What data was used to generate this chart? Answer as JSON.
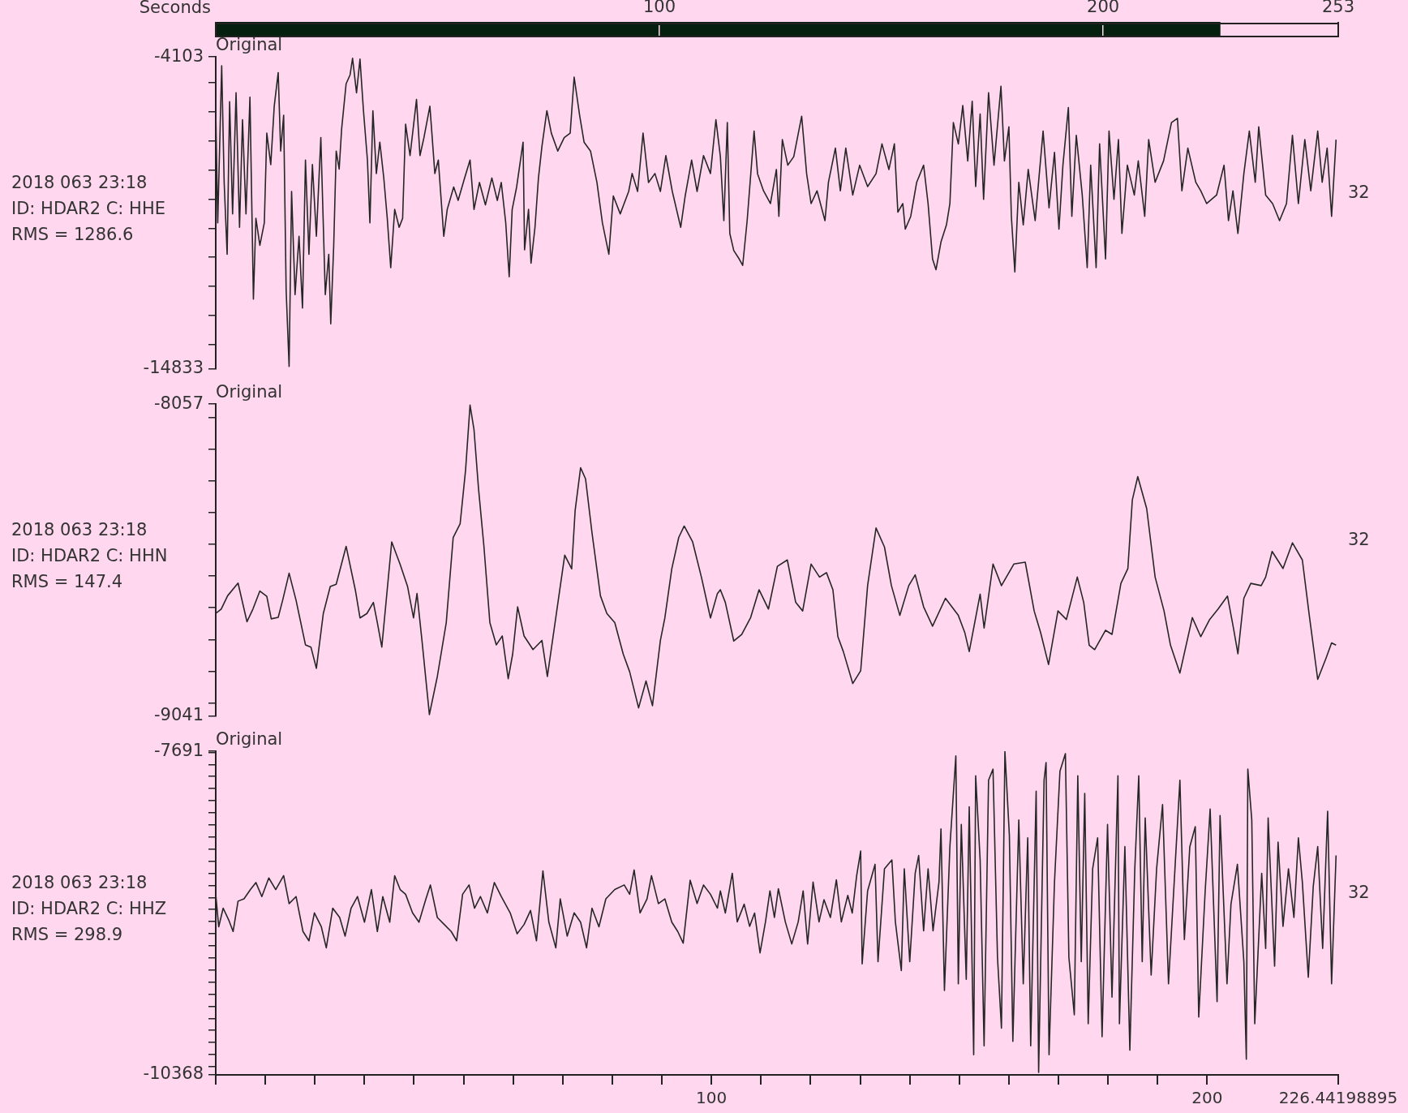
{
  "chart_data": [
    {
      "type": "line",
      "x2label": "Seconds",
      "x2lim": [
        0,
        253
      ],
      "x2ticks": [
        100,
        200,
        253
      ],
      "xlim": [
        0,
        226.44198895
      ],
      "ylim": [
        -14833,
        -4103
      ],
      "yticks": [
        -14833,
        {
          "value": -14000,
          "label": null
        },
        {
          "value": -13000,
          "label": null
        },
        {
          "value": -12000,
          "label": null
        },
        {
          "value": -11000,
          "label": null
        },
        {
          "value": -10000,
          "label": null
        },
        {
          "value": -9000,
          "label": null
        },
        {
          "value": -8000,
          "label": null
        },
        {
          "value": -7000,
          "label": null
        },
        {
          "value": -6000,
          "label": null
        },
        {
          "value": -5000,
          "label": null
        },
        -4103
      ],
      "tick_labels": "y",
      "annotations": [
        "Original",
        "2018 063 23:18",
        "ID: HDAR2 C: HHE",
        "RMS = 1286.6",
        "32"
      ],
      "series": [
        {
          "color": "#262626",
          "x": [
            0.0,
            0.4,
            1.2,
            1.7,
            2.3,
            2.8,
            3.4,
            4.1,
            4.8,
            5.4,
            6.1,
            6.9,
            7.6,
            8.1,
            8.9,
            9.8,
            10.3,
            11.1,
            11.8,
            12.6,
            13.1,
            13.7,
            14.2,
            14.8,
            15.3,
            16.0,
            16.8,
            17.5,
            18.1,
            18.8,
            19.5,
            20.3,
            21.2,
            22.1,
            22.8,
            23.2,
            23.8,
            24.3,
            24.9,
            25.4,
            26.3,
            27.1,
            27.6,
            28.4,
            29.1,
            29.8,
            30.6,
            31.1,
            31.7,
            32.4,
            33.1,
            33.9,
            34.6,
            35.3,
            36.1,
            37.0,
            37.7,
            38.3,
            39.2,
            40.5,
            41.2,
            42.0,
            43.2,
            44.2,
            44.9,
            46.0,
            46.7,
            48.0,
            48.9,
            50.2,
            51.3,
            52.1,
            53.2,
            54.4,
            55.7,
            56.8,
            57.6,
            58.5,
            59.2,
            59.8,
            60.7,
            62.0,
            62.3,
            63.1,
            63.6,
            64.4,
            65.1,
            65.8,
            66.8,
            67.7,
            69.0,
            70.3,
            71.5,
            72.3,
            73.4,
            74.3,
            75.6,
            76.9,
            78.0,
            79.3,
            80.2,
            81.6,
            83.3,
            84.0,
            85.1,
            86.2,
            87.3,
            88.6,
            89.7,
            90.8,
            92.1,
            93.8,
            94.7,
            96.0,
            97.1,
            98.4,
            99.8,
            100.9,
            101.8,
            102.5,
            103.2,
            103.7,
            104.5,
            105.6,
            106.3,
            107.2,
            108.6,
            109.3,
            110.5,
            111.9,
            113.1,
            113.6,
            114.3,
            115.4,
            116.6,
            118.2,
            119.2,
            120.1,
            121.3,
            122.9,
            123.6,
            125.0,
            126.0,
            127.1,
            128.5,
            129.9,
            131.5,
            133.2,
            134.4,
            135.8,
            136.9,
            137.6,
            138.6,
            139.1,
            140.2,
            141.4,
            142.8,
            143.7,
            144.6,
            145.3,
            146.3,
            147.4,
            148.1,
            148.8,
            149.8,
            150.7,
            151.7,
            152.6,
            153.3,
            154.2,
            154.9,
            155.9,
            157.0,
            158.4,
            159.1,
            160.0,
            160.5,
            161.2,
            162.0,
            162.9,
            163.9,
            165.3,
            166.9,
            168.1,
            169.2,
            170.1,
            170.9,
            172.0,
            172.7,
            173.6,
            174.8,
            175.8,
            176.5,
            177.6,
            178.3,
            179.5,
            180.2,
            181.2,
            182.1,
            182.8,
            183.9,
            185.3,
            186.1,
            187.4,
            188.2,
            189.5,
            191.2,
            192.8,
            194.0,
            194.9,
            196.1,
            197.7,
            198.7,
            199.9,
            201.9,
            203.4,
            204.3,
            205.2,
            206.2,
            207.4,
            208.5,
            209.7,
            210.4,
            211.8,
            213.2,
            214.6,
            216.0,
            217.2,
            218.4,
            219.7,
            220.9,
            222.3,
            223.2,
            224.2,
            225.1,
            226.0
          ],
          "values": [
            -5956,
            -9816,
            -4412,
            -8426,
            -10897,
            -5647,
            -9507,
            -5338,
            -9970,
            -6265,
            -9507,
            -5493,
            -12441,
            -9661,
            -10588,
            -9816,
            -6728,
            -7809,
            -5801,
            -4643,
            -7345,
            -6110,
            -12132,
            -14757,
            -8735,
            -12286,
            -10279,
            -12749,
            -7654,
            -10897,
            -7809,
            -10279,
            -6882,
            -12286,
            -10897,
            -13290,
            -10588,
            -7345,
            -7963,
            -6573,
            -5029,
            -4721,
            -4150,
            -5338,
            -4180,
            -5956,
            -7654,
            -9816,
            -5956,
            -8117,
            -7037,
            -8272,
            -9661,
            -11360,
            -9353,
            -9970,
            -9661,
            -6419,
            -7500,
            -5570,
            -7500,
            -6882,
            -5801,
            -8117,
            -7654,
            -10279,
            -9353,
            -8581,
            -9044,
            -8272,
            -7654,
            -9353,
            -8426,
            -9198,
            -8272,
            -9044,
            -8426,
            -9816,
            -11669,
            -9353,
            -8581,
            -7037,
            -10742,
            -9353,
            -11205,
            -9970,
            -8272,
            -7191,
            -5956,
            -6728,
            -7345,
            -6882,
            -6728,
            -4798,
            -6110,
            -7037,
            -7345,
            -8426,
            -9816,
            -10897,
            -8889,
            -9507,
            -8735,
            -8117,
            -8735,
            -6728,
            -8426,
            -8117,
            -8735,
            -7500,
            -8735,
            -9970,
            -8889,
            -7654,
            -8735,
            -7500,
            -8117,
            -6265,
            -7538,
            -9740,
            -6364,
            -10181,
            -10768,
            -11061,
            -11282,
            -9740,
            -6657,
            -8125,
            -8713,
            -9153,
            -7979,
            -9593,
            -6951,
            -7832,
            -7538,
            -6144,
            -8125,
            -9153,
            -8713,
            -9740,
            -8419,
            -7245,
            -8713,
            -7245,
            -8859,
            -7832,
            -8566,
            -8125,
            -7098,
            -7979,
            -7098,
            -9447,
            -9153,
            -10034,
            -9593,
            -8419,
            -7832,
            -9153,
            -11061,
            -11428,
            -10474,
            -9887,
            -9153,
            -6364,
            -7098,
            -5777,
            -7685,
            -5630,
            -8566,
            -6070,
            -9006,
            -5336,
            -7832,
            -5116,
            -7685,
            -6511,
            -9593,
            -11502,
            -8419,
            -9887,
            -7979,
            -9740,
            -6657,
            -9300,
            -7391,
            -10034,
            -7832,
            -5850,
            -9593,
            -6804,
            -8859,
            -11355,
            -7832,
            -11355,
            -7098,
            -11061,
            -6657,
            -9006,
            -6951,
            -10181,
            -7832,
            -8859,
            -7685,
            -9593,
            -6951,
            -8419,
            -7685,
            -6364,
            -6217,
            -8713,
            -7245,
            -8419,
            -8713,
            -9153,
            -8859,
            -7832,
            -9740,
            -8713,
            -10181,
            -8125,
            -6657,
            -8419,
            -6511,
            -8859,
            -9153,
            -9740,
            -9153,
            -6804,
            -9153,
            -6951,
            -8713,
            -6657,
            -8419,
            -7245,
            -9593,
            -6951
          ]
        }
      ]
    },
    {
      "type": "line",
      "xlim": [
        0,
        226.44198895
      ],
      "ylim": [
        -9041,
        -8057
      ],
      "yticks": [
        -9041,
        {
          "value": -9000,
          "label": null
        },
        {
          "value": -8900,
          "label": null
        },
        {
          "value": -8800,
          "label": null
        },
        {
          "value": -8700,
          "label": null
        },
        {
          "value": -8600,
          "label": null
        },
        {
          "value": -8500,
          "label": null
        },
        {
          "value": -8400,
          "label": null
        },
        {
          "value": -8300,
          "label": null
        },
        {
          "value": -8200,
          "label": null
        },
        {
          "value": -8100,
          "label": null
        },
        -8057
      ],
      "tick_labels": "y",
      "annotations": [
        "Original",
        "2018 063 23:18",
        "ID: HDAR2 C: HHN",
        "RMS = 147.4",
        "32"
      ],
      "series": [
        {
          "color": "#262626",
          "x": [
            0.0,
            1.1,
            2.4,
            4.5,
            6.3,
            7.5,
            8.9,
            10.3,
            11.2,
            12.6,
            13.5,
            14.8,
            16.2,
            18.1,
            19.2,
            20.3,
            21.7,
            23.1,
            24.3,
            26.3,
            28.2,
            29.1,
            30.5,
            31.8,
            32.6,
            33.5,
            35.5,
            37.2,
            38.7,
            39.9,
            40.6,
            41.6,
            43.1,
            44.7,
            46.5,
            47.9,
            49.3,
            50.4,
            51.3,
            52.1,
            53.0,
            54.1,
            55.3,
            56.6,
            57.8,
            59.0,
            59.9,
            60.9,
            62.2,
            64.0,
            65.8,
            66.9,
            69.1,
            70.4,
            71.8,
            72.5,
            73.6,
            74.6,
            75.9,
            77.6,
            78.9,
            80.5,
            82.2,
            83.5,
            85.3,
            86.8,
            88.1,
            89.7,
            90.6,
            92.0,
            93.4,
            94.5,
            96.2,
            98.0,
            99.8,
            101.2,
            101.8,
            102.8,
            104.5,
            106.1,
            107.9,
            109.6,
            111.5,
            113.3,
            115.3,
            117.0,
            118.4,
            120.1,
            121.8,
            123.2,
            124.5,
            125.5,
            126.6,
            128.5,
            130.1,
            131.5,
            133.2,
            134.9,
            136.3,
            138.0,
            139.8,
            141.1,
            142.8,
            144.6,
            147.2,
            149.8,
            151.1,
            152.0,
            154.2,
            155.0,
            156.8,
            158.5,
            161.0,
            163.3,
            165.1,
            166.4,
            168.0,
            169.9,
            171.6,
            173.8,
            175.1,
            176.2,
            177.3,
            179.5,
            180.8,
            182.6,
            184.0,
            184.9,
            186.0,
            187.8,
            189.5,
            191.3,
            192.6,
            194.5,
            197.0,
            198.7,
            200.5,
            202.2,
            204.1,
            205.3,
            206.2,
            207.4,
            208.8,
            210.9,
            211.8,
            213.1,
            215.3,
            217.2,
            219.2,
            220.6,
            222.3,
            224.0,
            225.1,
            226.0
          ],
          "values": [
            -8718,
            -8704,
            -8662,
            -8622,
            -8744,
            -8704,
            -8647,
            -8664,
            -8735,
            -8730,
            -8676,
            -8591,
            -8676,
            -8817,
            -8824,
            -8891,
            -8718,
            -8633,
            -8626,
            -8506,
            -8647,
            -8732,
            -8718,
            -8683,
            -8747,
            -8824,
            -8492,
            -8563,
            -8633,
            -8732,
            -8655,
            -8803,
            -9037,
            -8917,
            -8747,
            -8478,
            -8435,
            -8265,
            -8060,
            -8138,
            -8322,
            -8506,
            -8747,
            -8817,
            -8789,
            -8924,
            -8846,
            -8697,
            -8789,
            -8832,
            -8803,
            -8917,
            -8676,
            -8534,
            -8577,
            -8393,
            -8258,
            -8293,
            -8463,
            -8662,
            -8718,
            -8747,
            -8846,
            -8902,
            -9016,
            -8931,
            -9009,
            -8803,
            -8732,
            -8577,
            -8478,
            -8442,
            -8492,
            -8605,
            -8732,
            -8655,
            -8643,
            -8683,
            -8805,
            -8784,
            -8731,
            -8643,
            -8704,
            -8569,
            -8549,
            -8683,
            -8710,
            -8562,
            -8603,
            -8589,
            -8643,
            -8791,
            -8838,
            -8939,
            -8899,
            -8630,
            -8448,
            -8508,
            -8630,
            -8724,
            -8630,
            -8596,
            -8697,
            -8758,
            -8670,
            -8724,
            -8778,
            -8838,
            -8657,
            -8764,
            -8562,
            -8630,
            -8562,
            -8556,
            -8710,
            -8778,
            -8879,
            -8710,
            -8737,
            -8603,
            -8683,
            -8818,
            -8832,
            -8771,
            -8784,
            -8623,
            -8576,
            -8360,
            -8286,
            -8387,
            -8603,
            -8710,
            -8818,
            -8906,
            -8731,
            -8791,
            -8737,
            -8704,
            -8663,
            -8764,
            -8845,
            -8670,
            -8623,
            -8630,
            -8603,
            -8522,
            -8576,
            -8495,
            -8549,
            -8724,
            -8926,
            -8858,
            -8811,
            -8818
          ]
        }
      ]
    },
    {
      "type": "line",
      "xlim": [
        0,
        226.44198895
      ],
      "xticks": [
        {
          "value": 0,
          "label": null
        },
        {
          "value": 10,
          "label": null
        },
        {
          "value": 20,
          "label": null
        },
        {
          "value": 30,
          "label": null
        },
        {
          "value": 40,
          "label": null
        },
        {
          "value": 50,
          "label": null
        },
        {
          "value": 60,
          "label": null
        },
        {
          "value": 70,
          "label": null
        },
        {
          "value": 80,
          "label": null
        },
        {
          "value": 90,
          "label": null
        },
        100,
        {
          "value": 110,
          "label": null
        },
        {
          "value": 120,
          "label": null
        },
        {
          "value": 130,
          "label": null
        },
        {
          "value": 140,
          "label": null
        },
        {
          "value": 150,
          "label": null
        },
        {
          "value": 160,
          "label": null
        },
        {
          "value": 170,
          "label": null
        },
        {
          "value": 180,
          "label": null
        },
        {
          "value": 190,
          "label": null
        },
        200,
        226.44198895
      ],
      "ylim": [
        -10368,
        -7691
      ],
      "yticks": [
        -10368,
        {
          "value": -10300,
          "label": null
        },
        {
          "value": -10200,
          "label": null
        },
        {
          "value": -10100,
          "label": null
        },
        {
          "value": -10000,
          "label": null
        },
        {
          "value": -9900,
          "label": null
        },
        {
          "value": -9800,
          "label": null
        },
        {
          "value": -9700,
          "label": null
        },
        {
          "value": -9600,
          "label": null
        },
        {
          "value": -9500,
          "label": null
        },
        {
          "value": -9400,
          "label": null
        },
        {
          "value": -9300,
          "label": null
        },
        {
          "value": -9200,
          "label": null
        },
        {
          "value": -9100,
          "label": null
        },
        {
          "value": -9000,
          "label": null
        },
        {
          "value": -8900,
          "label": null
        },
        {
          "value": -8800,
          "label": null
        },
        {
          "value": -8700,
          "label": null
        },
        {
          "value": -8600,
          "label": null
        },
        {
          "value": -8500,
          "label": null
        },
        {
          "value": -8400,
          "label": null
        },
        {
          "value": -8300,
          "label": null
        },
        {
          "value": -8200,
          "label": null
        },
        {
          "value": -8100,
          "label": null
        },
        {
          "value": -8000,
          "label": null
        },
        {
          "value": -7900,
          "label": null
        },
        {
          "value": -7800,
          "label": null
        },
        {
          "value": -7700,
          "label": null
        },
        -7691
      ],
      "annotations": [
        "Original",
        "2018 063 23:18",
        "ID: HDAR2 C: HHZ",
        "RMS = 298.9",
        "32"
      ],
      "series": [
        {
          "color": "#262626",
          "x": [
            0.0,
            0.6,
            1.5,
            2.6,
            3.5,
            4.5,
            5.7,
            7.0,
            8.1,
            9.3,
            10.7,
            12.1,
            13.7,
            14.8,
            16.2,
            17.6,
            18.8,
            19.9,
            21.3,
            22.3,
            23.6,
            25.0,
            26.1,
            27.3,
            28.6,
            30.0,
            31.4,
            32.6,
            33.7,
            35.1,
            36.1,
            37.2,
            38.3,
            39.7,
            41.0,
            42.4,
            43.3,
            44.7,
            46.1,
            47.5,
            48.6,
            49.8,
            51.1,
            52.2,
            53.4,
            54.8,
            56.2,
            57.6,
            59.4,
            60.8,
            62.2,
            63.5,
            64.7,
            66.0,
            67.2,
            68.6,
            69.5,
            70.9,
            72.3,
            73.6,
            74.8,
            75.9,
            77.3,
            78.7,
            80.5,
            82.4,
            83.5,
            84.4,
            85.6,
            87.0,
            87.9,
            89.3,
            90.6,
            92.0,
            93.2,
            94.3,
            95.7,
            97.1,
            98.4,
            99.8,
            101.2,
            101.8,
            102.8,
            104.2,
            105.2,
            106.6,
            107.7,
            108.7,
            109.8,
            110.9,
            111.8,
            112.7,
            113.5,
            114.9,
            116.2,
            117.5,
            118.5,
            119.4,
            120.5,
            121.7,
            122.7,
            124.0,
            125.2,
            126.2,
            127.5,
            128.4,
            129.3,
            130.1,
            130.4,
            131.5,
            133.0,
            133.6,
            134.9,
            136.4,
            137.1,
            138.3,
            138.9,
            140.0,
            141.1,
            141.8,
            142.8,
            143.7,
            144.7,
            145.9,
            146.3,
            147.0,
            148.1,
            149.3,
            149.8,
            150.4,
            151.4,
            152.0,
            152.9,
            153.3,
            154.2,
            155.0,
            155.9,
            156.8,
            157.7,
            158.5,
            159.2,
            160.1,
            160.8,
            162.0,
            162.9,
            163.8,
            164.4,
            165.5,
            166.0,
            167.1,
            167.5,
            168.1,
            169.2,
            170.3,
            171.4,
            172.1,
            173.2,
            173.9,
            174.6,
            175.3,
            176.0,
            176.9,
            177.9,
            178.8,
            179.9,
            180.8,
            182.0,
            182.3,
            183.4,
            184.4,
            185.4,
            186.2,
            186.9,
            187.5,
            188.7,
            189.8,
            191.0,
            192.2,
            193.5,
            194.5,
            195.4,
            196.5,
            197.6,
            198.3,
            199.6,
            200.6,
            202.0,
            202.6,
            204.0,
            204.8,
            206.1,
            207.4,
            207.9,
            208.2,
            209.0,
            209.6,
            211.0,
            211.8,
            212.3,
            213.6,
            214.3,
            215.3,
            216.4,
            217.5,
            218.4,
            219.2,
            220.4,
            221.4,
            222.3,
            223.3,
            224.3,
            225.1,
            226.0
          ],
          "values": [
            -8874,
            -9143,
            -8989,
            -9085,
            -9182,
            -8931,
            -8912,
            -8835,
            -8777,
            -8893,
            -8739,
            -8835,
            -8720,
            -8951,
            -8893,
            -9182,
            -9259,
            -9028,
            -9143,
            -9317,
            -8989,
            -9066,
            -9220,
            -8989,
            -8893,
            -9105,
            -8835,
            -9182,
            -8893,
            -9105,
            -8720,
            -8835,
            -8874,
            -9028,
            -9105,
            -8912,
            -8797,
            -9066,
            -9124,
            -9182,
            -9259,
            -8874,
            -8797,
            -8989,
            -8893,
            -9028,
            -8777,
            -8893,
            -9028,
            -9201,
            -9124,
            -9008,
            -9259,
            -8681,
            -9105,
            -9317,
            -8912,
            -9220,
            -9028,
            -9105,
            -9317,
            -8989,
            -9143,
            -8912,
            -8835,
            -8797,
            -8874,
            -8673,
            -9028,
            -8912,
            -8720,
            -8951,
            -8912,
            -9105,
            -9182,
            -9278,
            -8758,
            -8951,
            -8797,
            -8874,
            -8989,
            -8846,
            -9029,
            -8700,
            -9102,
            -8956,
            -9139,
            -9029,
            -9359,
            -9102,
            -8846,
            -9066,
            -8828,
            -9102,
            -9285,
            -9102,
            -8846,
            -9285,
            -8773,
            -9102,
            -8919,
            -9066,
            -8754,
            -9102,
            -8883,
            -9029,
            -8718,
            -8516,
            -9450,
            -8846,
            -8626,
            -9432,
            -8663,
            -8590,
            -9102,
            -9505,
            -8663,
            -9432,
            -8700,
            -8553,
            -9176,
            -8663,
            -9176,
            -8773,
            -8333,
            -9670,
            -8480,
            -7729,
            -9615,
            -8297,
            -9578,
            -8150,
            -10201,
            -7894,
            -8590,
            -10128,
            -7930,
            -7839,
            -9395,
            -9981,
            -7693,
            -8388,
            -10091,
            -8260,
            -9615,
            -8407,
            -10128,
            -8022,
            -10347,
            -7930,
            -7784,
            -10201,
            -8773,
            -7857,
            -7711,
            -9395,
            -9871,
            -7894,
            -9432,
            -8040,
            -9945,
            -8663,
            -8407,
            -10053,
            -8297,
            -9725,
            -7894,
            -9945,
            -8480,
            -10164,
            -8663,
            -7894,
            -9432,
            -8242,
            -9542,
            -8663,
            -8132,
            -9615,
            -8663,
            -7930,
            -9249,
            -8480,
            -8315,
            -9890,
            -8846,
            -8169,
            -9762,
            -8223,
            -9615,
            -8956,
            -8626,
            -9432,
            -10238,
            -7839,
            -8260,
            -9945,
            -8700,
            -9322,
            -8242,
            -9469,
            -8443,
            -9139,
            -8663,
            -9066,
            -8407,
            -8773,
            -9560,
            -8809,
            -8480,
            -9322,
            -8187,
            -9615,
            -8553
          ]
        }
      ]
    }
  ]
}
